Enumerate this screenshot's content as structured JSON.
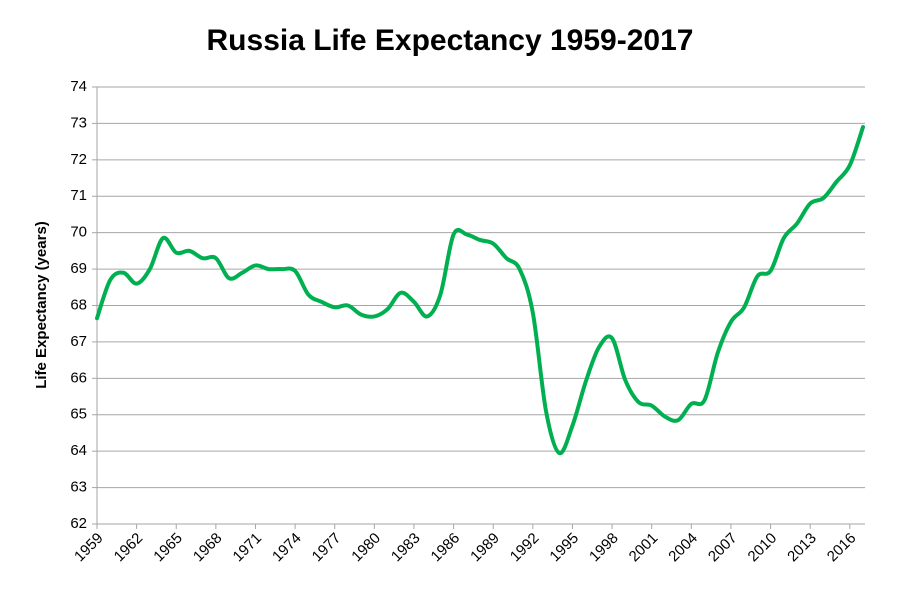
{
  "chart_data": {
    "type": "line",
    "title": "Russia Life Expectancy 1959-2017",
    "y_label": "Life Expectancy (years)",
    "x": [
      1959,
      1960,
      1961,
      1962,
      1963,
      1964,
      1965,
      1966,
      1967,
      1968,
      1969,
      1970,
      1971,
      1972,
      1973,
      1974,
      1975,
      1976,
      1977,
      1978,
      1979,
      1980,
      1981,
      1982,
      1983,
      1984,
      1985,
      1986,
      1987,
      1988,
      1989,
      1990,
      1991,
      1992,
      1993,
      1994,
      1995,
      1996,
      1997,
      1998,
      1999,
      2000,
      2001,
      2002,
      2003,
      2004,
      2005,
      2006,
      2007,
      2008,
      2009,
      2010,
      2011,
      2012,
      2013,
      2014,
      2015,
      2016,
      2017
    ],
    "values": [
      67.65,
      68.7,
      68.9,
      68.6,
      69.0,
      69.85,
      69.45,
      69.5,
      69.3,
      69.3,
      68.75,
      68.9,
      69.1,
      69.0,
      69.0,
      68.95,
      68.3,
      68.1,
      67.95,
      68.0,
      67.75,
      67.7,
      67.9,
      68.35,
      68.1,
      67.7,
      68.3,
      69.95,
      69.95,
      69.8,
      69.7,
      69.3,
      69.0,
      67.8,
      65.1,
      63.95,
      64.7,
      65.9,
      66.85,
      67.1,
      65.95,
      65.35,
      65.25,
      64.95,
      64.85,
      65.3,
      65.4,
      66.7,
      67.55,
      67.95,
      68.8,
      68.95,
      69.85,
      70.25,
      70.8,
      70.95,
      71.4,
      71.85,
      72.9
    ],
    "color": "#00b050",
    "smooth": true,
    "xlim": [
      1959,
      2017
    ],
    "xticks": [
      1959,
      1962,
      1965,
      1968,
      1971,
      1974,
      1977,
      1980,
      1983,
      1986,
      1989,
      1992,
      1995,
      1998,
      2001,
      2004,
      2007,
      2010,
      2013,
      2016
    ],
    "ylim": [
      62,
      74
    ],
    "yticks": [
      62,
      63,
      64,
      65,
      66,
      67,
      68,
      69,
      70,
      71,
      72,
      73,
      74
    ],
    "grid": true
  }
}
